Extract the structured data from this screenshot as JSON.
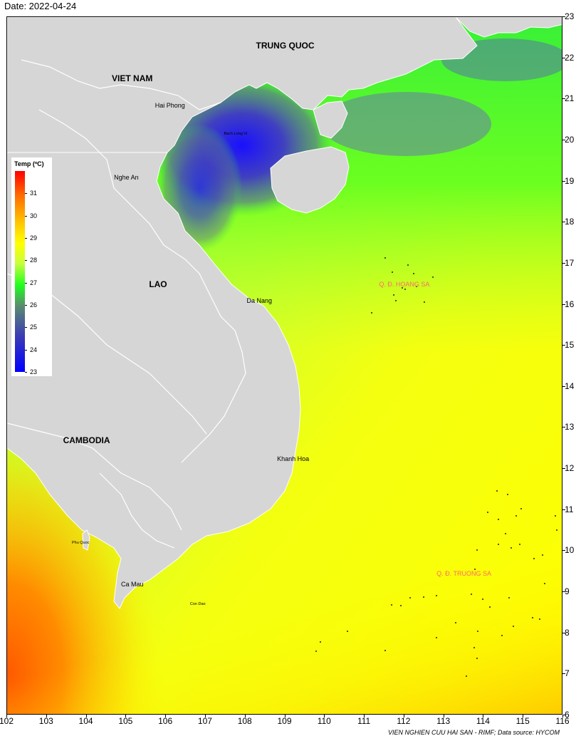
{
  "date_label": "Date: 2022-04-24",
  "credit": "VIEN NGHIEN CUU HAI SAN - RIMF; Data source: HYCOM",
  "extent": {
    "lon_min": 102,
    "lon_max": 116,
    "lat_min": 6,
    "lat_max": 23
  },
  "x_ticks": [
    "102",
    "103",
    "104",
    "105",
    "106",
    "107",
    "108",
    "109",
    "110",
    "111",
    "112",
    "113",
    "114",
    "115",
    "116"
  ],
  "y_ticks": [
    "6",
    "7",
    "8",
    "9",
    "10",
    "11",
    "12",
    "13",
    "14",
    "15",
    "16",
    "17",
    "18",
    "19",
    "20",
    "21",
    "22",
    "23"
  ],
  "legend": {
    "title": "Temp (ºC)",
    "min": 23,
    "max": 32,
    "ticks": [
      "31",
      "30",
      "29",
      "28",
      "27",
      "26",
      "25",
      "24",
      "23"
    ],
    "colors": [
      "#0000ff",
      "#3c3cb4",
      "#5a8c6e",
      "#1eff1e",
      "#c8ff3c",
      "#ffff00",
      "#ffc800",
      "#ff6a00",
      "#ff0000"
    ]
  },
  "countries": [
    {
      "name": "TRUNG QUOC",
      "lon": 109.0,
      "lat": 22.3
    },
    {
      "name": "VIET NAM",
      "lon": 105.15,
      "lat": 21.5
    },
    {
      "name": "LAO",
      "lon": 105.8,
      "lat": 16.5
    },
    {
      "name": "CAMBODIA",
      "lon": 104.0,
      "lat": 12.7
    }
  ],
  "places": [
    {
      "name": "Hai Phong",
      "lon": 106.1,
      "lat": 20.85,
      "size": "normal"
    },
    {
      "name": "Bach Long Vi",
      "lon": 107.75,
      "lat": 20.15,
      "size": "tiny"
    },
    {
      "name": "Nghe An",
      "lon": 105.0,
      "lat": 19.1,
      "size": "normal"
    },
    {
      "name": "Da Nang",
      "lon": 108.35,
      "lat": 16.1,
      "size": "normal"
    },
    {
      "name": "Khanh Hoa",
      "lon": 109.2,
      "lat": 12.25,
      "size": "normal"
    },
    {
      "name": "Phu Quoc",
      "lon": 103.85,
      "lat": 10.2,
      "size": "tiny"
    },
    {
      "name": "Ca Mau",
      "lon": 105.15,
      "lat": 9.2,
      "size": "normal"
    },
    {
      "name": "Con Dao",
      "lon": 106.8,
      "lat": 8.7,
      "size": "tiny"
    }
  ],
  "archipelagos": [
    {
      "name": "Q. Đ. HOANG SA",
      "lon": 112.0,
      "lat": 16.5
    },
    {
      "name": "Q. Đ. TRUONG SA",
      "lon": 113.5,
      "lat": 9.45
    }
  ]
}
